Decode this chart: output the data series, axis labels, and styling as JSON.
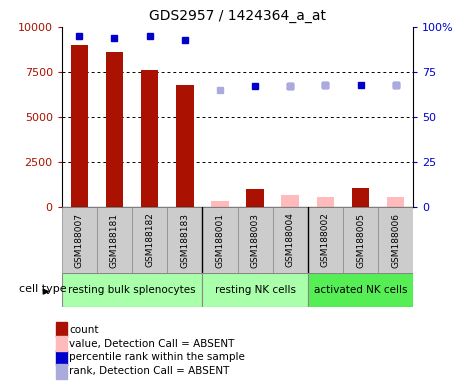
{
  "title": "GDS2957 / 1424364_a_at",
  "samples": [
    "GSM188007",
    "GSM188181",
    "GSM188182",
    "GSM188183",
    "GSM188001",
    "GSM188003",
    "GSM188004",
    "GSM188002",
    "GSM188005",
    "GSM188006"
  ],
  "count_values": [
    9000,
    8600,
    7600,
    6800,
    null,
    1000,
    null,
    null,
    1050,
    null
  ],
  "rank_values": [
    95,
    94,
    95,
    93,
    null,
    67,
    67,
    68,
    68,
    68
  ],
  "absent_value_values": [
    null,
    null,
    null,
    null,
    350,
    null,
    700,
    600,
    null,
    600
  ],
  "absent_rank_values": [
    null,
    null,
    null,
    null,
    65,
    null,
    67,
    68,
    null,
    68
  ],
  "group_configs": [
    {
      "label": "resting bulk splenocytes",
      "start": 0,
      "end": 4,
      "color": "#aaffaa"
    },
    {
      "label": "resting NK cells",
      "start": 4,
      "end": 7,
      "color": "#aaffaa"
    },
    {
      "label": "activated NK cells",
      "start": 7,
      "end": 10,
      "color": "#55ee55"
    }
  ],
  "ylim_left": [
    0,
    10000
  ],
  "ylim_right": [
    0,
    100
  ],
  "yticks_left": [
    0,
    2500,
    5000,
    7500,
    10000
  ],
  "yticks_right": [
    0,
    25,
    50,
    75,
    100
  ],
  "ytick_labels_left": [
    "0",
    "2500",
    "5000",
    "7500",
    "10000"
  ],
  "ytick_labels_right": [
    "0",
    "25",
    "50",
    "75",
    "100%"
  ],
  "bar_color_count": "#aa1100",
  "bar_color_absent": "#ffbbbb",
  "dot_color_present": "#0000cc",
  "dot_color_absent": "#aaaadd",
  "bar_width": 0.5,
  "figsize": [
    4.75,
    3.84
  ],
  "dpi": 100
}
